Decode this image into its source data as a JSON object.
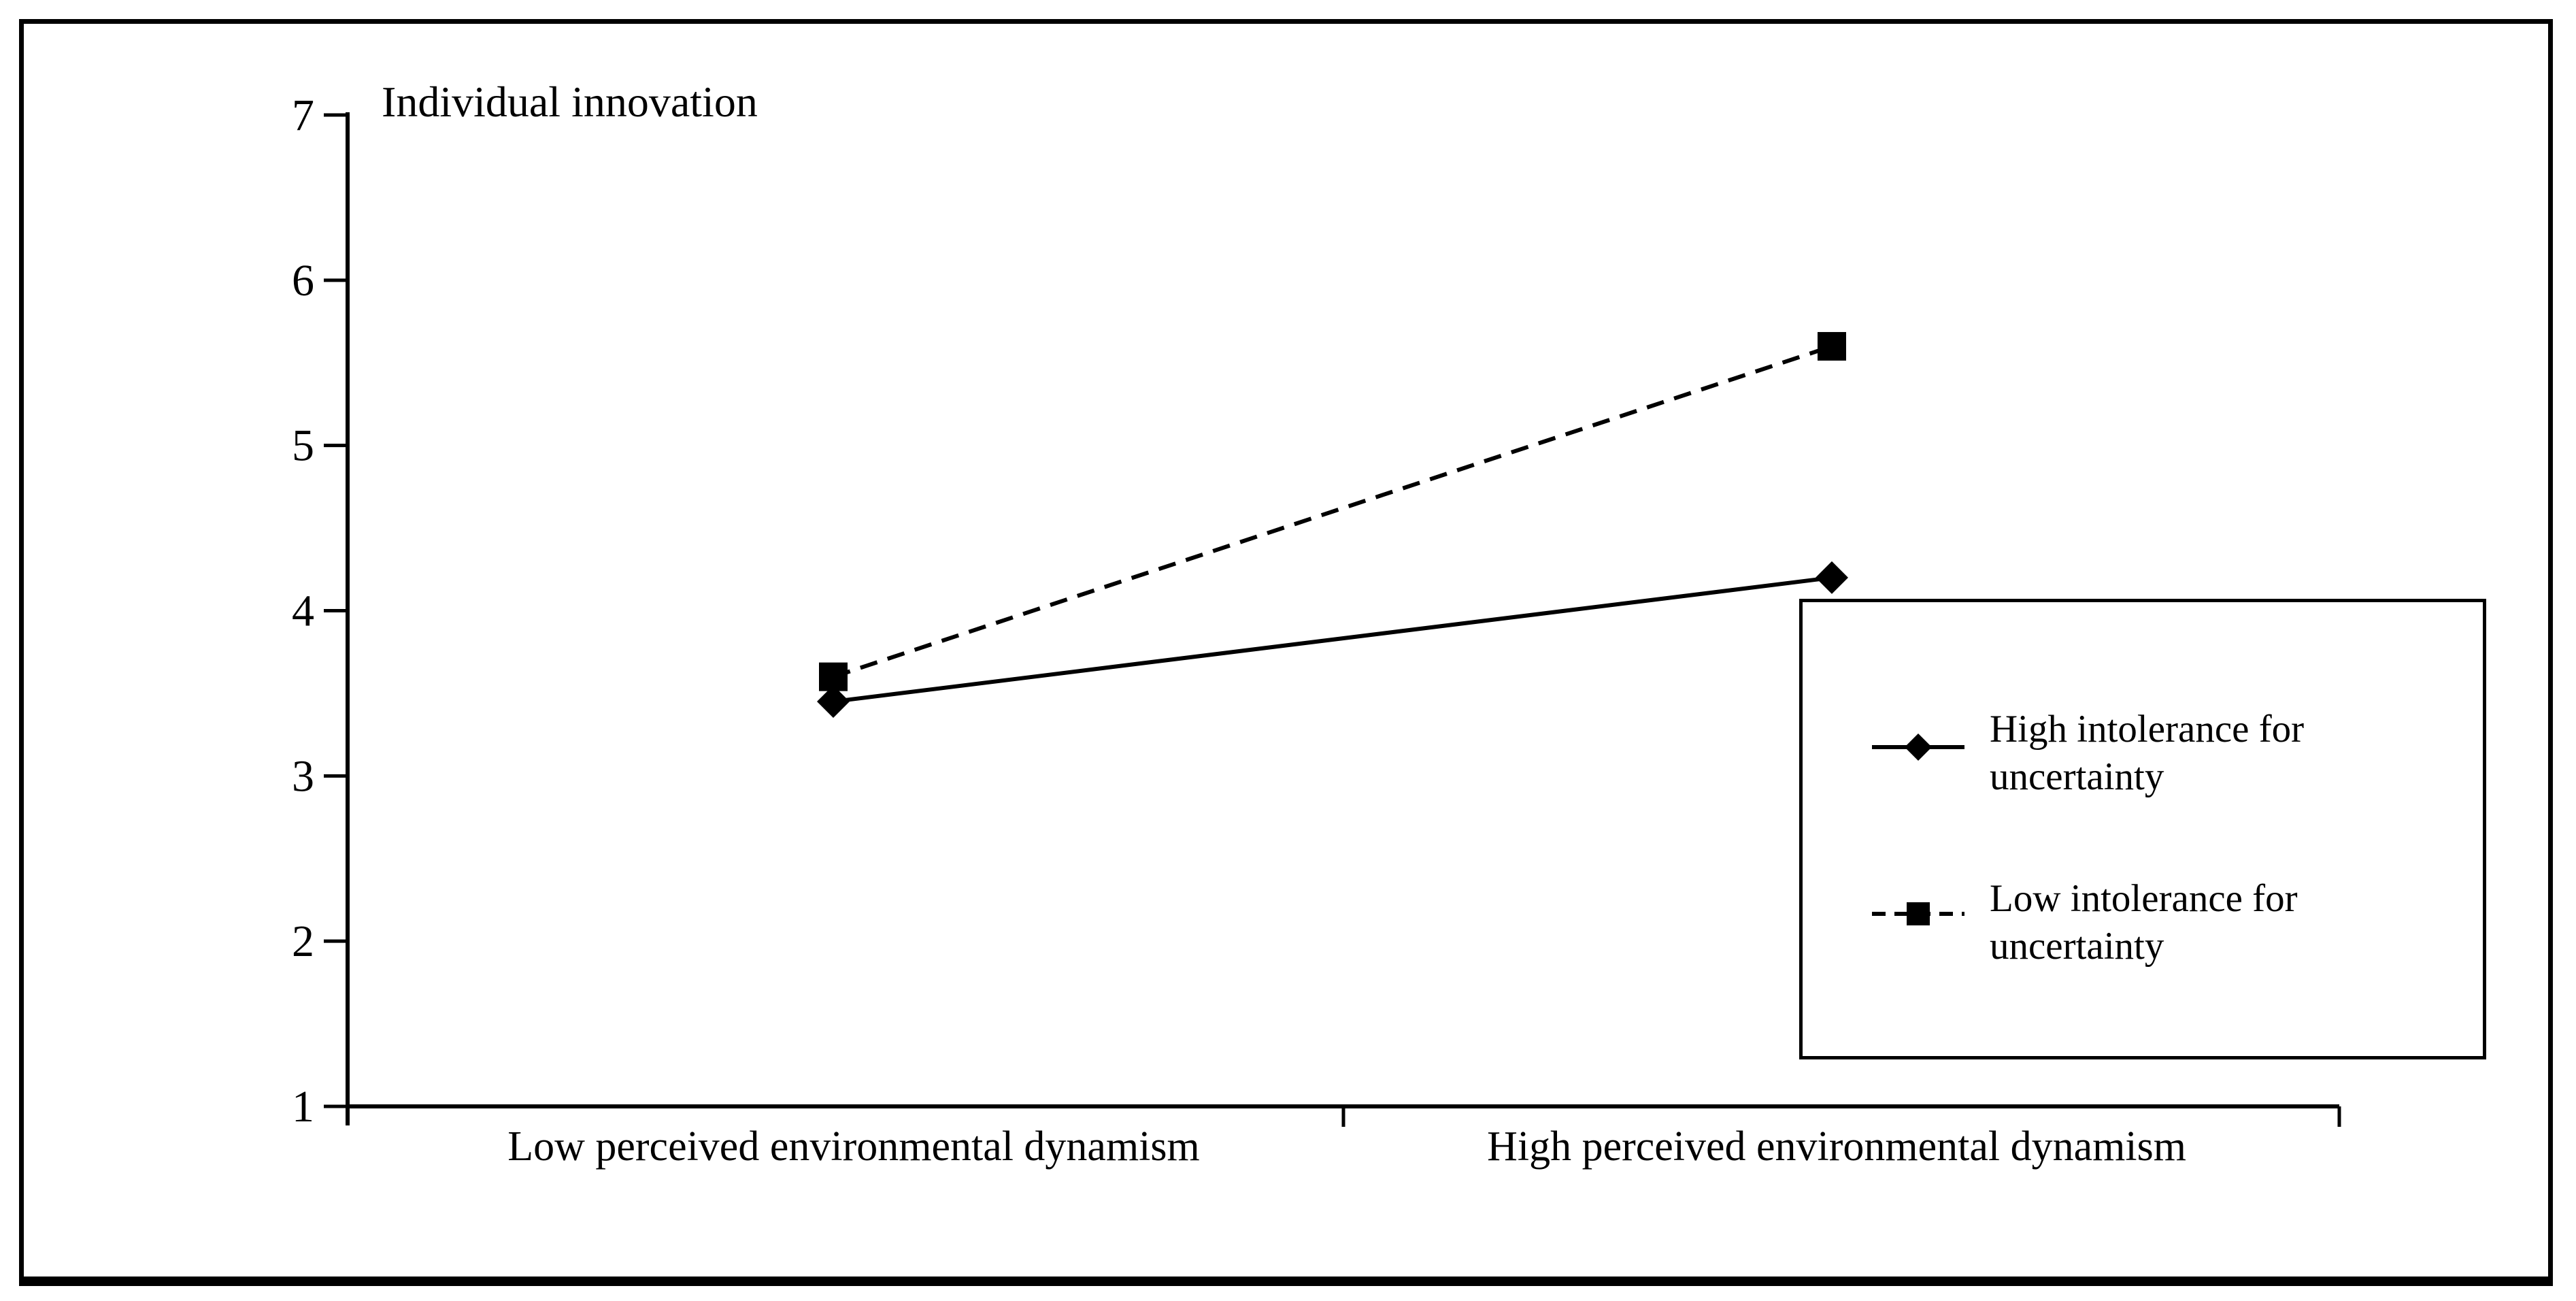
{
  "figure": {
    "background_color": "#ffffff",
    "line_color": "#000000",
    "border": "black framed rectangle with thicker bottom edge"
  },
  "chart_data": {
    "type": "line",
    "title": "Individual innovation",
    "categories": [
      "Low perceived environmental dynamism",
      "High perceived environmental dynamism"
    ],
    "series": [
      {
        "name": "High intolerance for uncertainty",
        "values": [
          3.45,
          4.2
        ],
        "line_style": "solid",
        "marker": "diamond",
        "color": "#000000"
      },
      {
        "name": "Low intolerance for uncertainty",
        "values": [
          3.6,
          5.6
        ],
        "line_style": "dashed",
        "marker": "square",
        "color": "#000000"
      }
    ],
    "y_axis": {
      "min": 1,
      "max": 7,
      "ticks": [
        7,
        6,
        5,
        4,
        3,
        2,
        1
      ]
    },
    "x_axis": {
      "tick_positions": "start, middle, end"
    },
    "grid": false,
    "legend_position": "bottom-right"
  },
  "legend": {
    "items": [
      {
        "label": "High intolerance for uncertainty",
        "marker": "diamond",
        "line": "solid"
      },
      {
        "label": "Low intolerance for uncertainty",
        "marker": "square",
        "line": "dashed"
      }
    ]
  }
}
